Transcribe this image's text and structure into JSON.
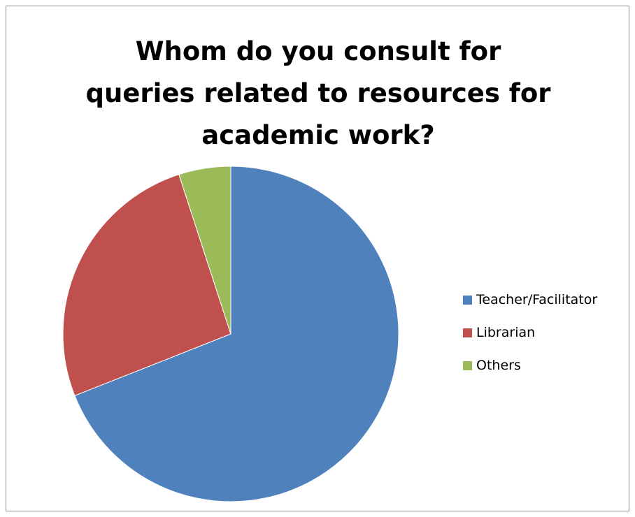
{
  "chart_data": {
    "type": "pie",
    "title": "Whom do you consult for queries related to resources for academic work?",
    "categories": [
      "Teacher/Facilitator",
      "Librarian",
      "Others"
    ],
    "values": [
      69,
      26,
      5
    ],
    "colors": [
      "#4f81bd",
      "#c0504d",
      "#9bbb59"
    ],
    "legend": "right",
    "start_angle_deg": 0,
    "direction": "clockwise"
  }
}
